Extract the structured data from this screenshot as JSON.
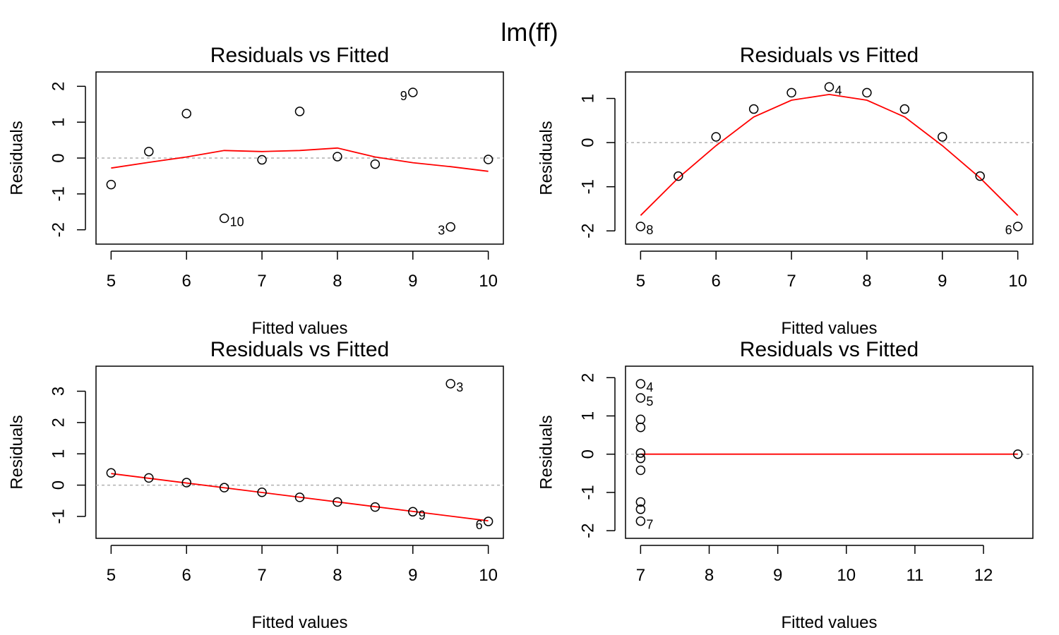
{
  "figure": {
    "title": "lm(ff)"
  },
  "chart_data": [
    {
      "type": "scatter",
      "title": "Residuals vs Fitted",
      "xlabel": "Fitted values",
      "ylabel": "Residuals",
      "xlim": [
        4.8,
        10.2
      ],
      "ylim": [
        -2.4,
        2.4
      ],
      "xticks": [
        5,
        6,
        7,
        8,
        9,
        10
      ],
      "yticks": [
        -2,
        -1,
        0,
        1,
        2
      ],
      "points": [
        {
          "x": 5.0,
          "y": -0.74
        },
        {
          "x": 5.5,
          "y": 0.18
        },
        {
          "x": 6.0,
          "y": 1.24
        },
        {
          "x": 6.5,
          "y": -1.68,
          "label": "10",
          "label_side": "right"
        },
        {
          "x": 7.0,
          "y": -0.05
        },
        {
          "x": 7.5,
          "y": 1.3
        },
        {
          "x": 8.0,
          "y": 0.04
        },
        {
          "x": 8.5,
          "y": -0.17
        },
        {
          "x": 9.0,
          "y": 1.83,
          "label": "9",
          "label_side": "left"
        },
        {
          "x": 9.5,
          "y": -1.92,
          "label": "3",
          "label_side": "left"
        },
        {
          "x": 10.0,
          "y": -0.04
        }
      ],
      "smooth": [
        {
          "x": 5.0,
          "y": -0.28
        },
        {
          "x": 5.5,
          "y": -0.12
        },
        {
          "x": 6.0,
          "y": 0.03
        },
        {
          "x": 6.5,
          "y": 0.21
        },
        {
          "x": 7.0,
          "y": 0.18
        },
        {
          "x": 7.5,
          "y": 0.21
        },
        {
          "x": 8.0,
          "y": 0.28
        },
        {
          "x": 8.5,
          "y": 0.03
        },
        {
          "x": 9.0,
          "y": -0.13
        },
        {
          "x": 9.5,
          "y": -0.24
        },
        {
          "x": 10.0,
          "y": -0.37
        }
      ]
    },
    {
      "type": "scatter",
      "title": "Residuals vs Fitted",
      "xlabel": "Fitted values",
      "ylabel": "Residuals",
      "xlim": [
        4.8,
        10.2
      ],
      "ylim": [
        -2.3,
        1.6
      ],
      "xticks": [
        5,
        6,
        7,
        8,
        9,
        10
      ],
      "yticks": [
        -2,
        -1,
        0,
        1
      ],
      "points": [
        {
          "x": 5.0,
          "y": -1.9,
          "label": "8",
          "label_side": "right"
        },
        {
          "x": 5.5,
          "y": -0.76
        },
        {
          "x": 6.0,
          "y": 0.13
        },
        {
          "x": 6.5,
          "y": 0.76
        },
        {
          "x": 7.0,
          "y": 1.13
        },
        {
          "x": 7.5,
          "y": 1.26,
          "label": "4",
          "label_side": "right"
        },
        {
          "x": 8.0,
          "y": 1.13
        },
        {
          "x": 8.5,
          "y": 0.76
        },
        {
          "x": 9.0,
          "y": 0.13
        },
        {
          "x": 9.5,
          "y": -0.76
        },
        {
          "x": 10.0,
          "y": -1.9,
          "label": "6",
          "label_side": "left"
        }
      ],
      "smooth": [
        {
          "x": 5.0,
          "y": -1.65
        },
        {
          "x": 5.5,
          "y": -0.8
        },
        {
          "x": 6.0,
          "y": -0.07
        },
        {
          "x": 6.5,
          "y": 0.58
        },
        {
          "x": 7.0,
          "y": 0.96
        },
        {
          "x": 7.5,
          "y": 1.09
        },
        {
          "x": 8.0,
          "y": 0.96
        },
        {
          "x": 8.5,
          "y": 0.58
        },
        {
          "x": 9.0,
          "y": -0.07
        },
        {
          "x": 9.5,
          "y": -0.8
        },
        {
          "x": 10.0,
          "y": -1.65
        }
      ]
    },
    {
      "type": "scatter",
      "title": "Residuals vs Fitted",
      "xlabel": "Fitted values",
      "ylabel": "Residuals",
      "xlim": [
        4.8,
        10.2
      ],
      "ylim": [
        -1.7,
        3.8
      ],
      "xticks": [
        5,
        6,
        7,
        8,
        9,
        10
      ],
      "yticks": [
        -1,
        0,
        1,
        2,
        3
      ],
      "points": [
        {
          "x": 5.0,
          "y": 0.39
        },
        {
          "x": 5.5,
          "y": 0.23
        },
        {
          "x": 6.0,
          "y": 0.08
        },
        {
          "x": 6.5,
          "y": -0.08
        },
        {
          "x": 7.0,
          "y": -0.23
        },
        {
          "x": 7.5,
          "y": -0.39
        },
        {
          "x": 8.0,
          "y": -0.54
        },
        {
          "x": 8.5,
          "y": -0.7
        },
        {
          "x": 9.0,
          "y": -0.85,
          "label": "9",
          "label_side": "right"
        },
        {
          "x": 9.5,
          "y": 3.24,
          "label": "3",
          "label_side": "right"
        },
        {
          "x": 10.0,
          "y": -1.16,
          "label": "6",
          "label_side": "left"
        }
      ],
      "smooth": [
        {
          "x": 5.0,
          "y": 0.37
        },
        {
          "x": 10.0,
          "y": -1.14
        }
      ]
    },
    {
      "type": "scatter",
      "title": "Residuals vs Fitted",
      "xlabel": "Fitted values",
      "ylabel": "Residuals",
      "xlim": [
        6.78,
        12.72
      ],
      "ylim": [
        -2.2,
        2.3
      ],
      "xticks": [
        7,
        8,
        9,
        10,
        11,
        12
      ],
      "yticks": [
        -2,
        -1,
        0,
        1,
        2
      ],
      "points": [
        {
          "x": 7.0,
          "y": 1.84,
          "label": "4",
          "label_side": "right"
        },
        {
          "x": 7.0,
          "y": 1.47,
          "label": "5",
          "label_side": "right"
        },
        {
          "x": 7.0,
          "y": 0.91
        },
        {
          "x": 7.0,
          "y": 0.7
        },
        {
          "x": 7.0,
          "y": 0.03
        },
        {
          "x": 7.0,
          "y": -0.11
        },
        {
          "x": 7.0,
          "y": -0.42
        },
        {
          "x": 7.0,
          "y": -1.25
        },
        {
          "x": 7.0,
          "y": -1.44
        },
        {
          "x": 7.0,
          "y": -1.75,
          "label": "7",
          "label_side": "right"
        },
        {
          "x": 12.5,
          "y": 0.0
        }
      ],
      "smooth": [
        {
          "x": 7.0,
          "y": 0.0
        },
        {
          "x": 12.5,
          "y": 0.0
        }
      ]
    }
  ]
}
